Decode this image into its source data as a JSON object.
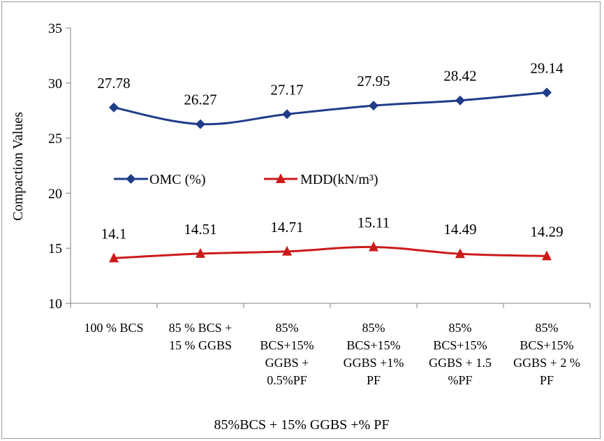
{
  "chart_data": {
    "type": "line",
    "xlabel": "85%BCS + 15% GGBS +% PF",
    "ylabel": "Compaction Values",
    "ylim": [
      10,
      35
    ],
    "yticks": [
      10,
      15,
      20,
      25,
      30,
      35
    ],
    "grid": false,
    "legend_position": "middle-left",
    "categories": [
      [
        "100 % BCS"
      ],
      [
        "85  % BCS +",
        "15 % GGBS"
      ],
      [
        "85%",
        "BCS+15%",
        "GGBS +",
        "0.5%PF"
      ],
      [
        "85%",
        "BCS+15%",
        "GGBS +1%",
        "PF"
      ],
      [
        "85%",
        "BCS+15%",
        "GGBS + 1.5",
        "%PF"
      ],
      [
        "85%",
        "BCS+15%",
        "GGBS + 2 %",
        "PF"
      ]
    ],
    "series": [
      {
        "name": "OMC (%)",
        "color": "#1f3c88",
        "marker": "diamond",
        "values": [
          27.78,
          26.27,
          27.17,
          27.95,
          28.42,
          29.14
        ],
        "labels": [
          "27.78",
          "26.27",
          "27.17",
          "27.95",
          "28.42",
          "29.14"
        ]
      },
      {
        "name": "MDD(kN/m³)",
        "color": "#cc1a1a",
        "marker": "triangle",
        "values": [
          14.1,
          14.51,
          14.71,
          15.11,
          14.49,
          14.29
        ],
        "labels": [
          "14.1",
          "14.51",
          "14.71",
          "15.11",
          "14.49",
          "14.29"
        ]
      }
    ]
  }
}
